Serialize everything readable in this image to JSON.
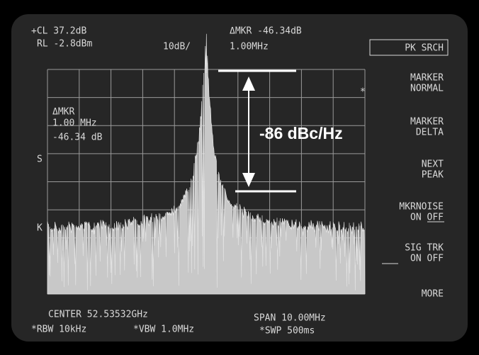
{
  "header": {
    "cal": "+CL 37.2dB",
    "ref_level": "RL -2.8dBm",
    "scale": "10dB/",
    "delta_marker": "ΔMKR -46.34dB",
    "delta_freq": "1.00MHz"
  },
  "marker_readout": {
    "label": "ΔMKR",
    "freq": "1.00 MHz",
    "level": "-46.34 dB"
  },
  "side_labels": [
    "S",
    "K"
  ],
  "asterisk": "*",
  "softkeys": [
    {
      "lines": [
        "PK SRCH"
      ]
    },
    {
      "lines": [
        "MARKER",
        "NORMAL"
      ]
    },
    {
      "lines": [
        "MARKER",
        "DELTA"
      ]
    },
    {
      "lines": [
        "NEXT",
        "PEAK"
      ]
    },
    {
      "lines": [
        "MKRNOISE",
        "ON OFF"
      ]
    },
    {
      "lines": [
        "SIG TRK",
        "ON OFF"
      ]
    },
    {
      "lines": [
        "MORE"
      ]
    }
  ],
  "footer": {
    "center": "CENTER 52.53532GHz",
    "span": "SPAN 10.00MHz",
    "rbw": "*RBW 10kHz",
    "vbw": "*VBW 1.0MHz",
    "sweep": "*SWP 500ms"
  },
  "annotation": "-86 dBc/Hz"
}
